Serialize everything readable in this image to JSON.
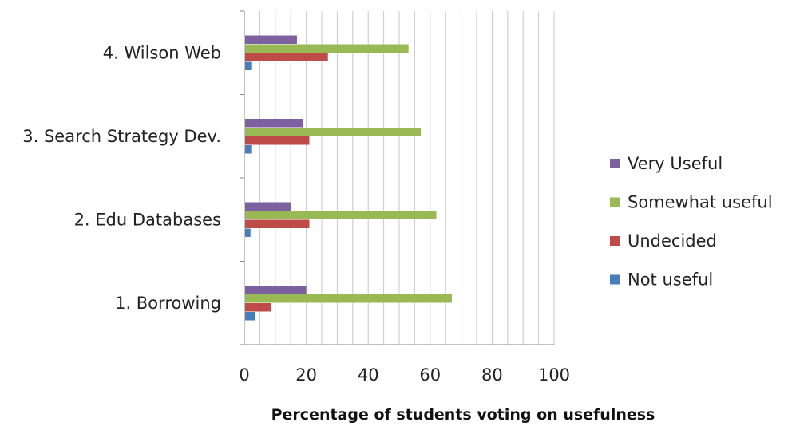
{
  "chart_data": {
    "type": "bar",
    "orientation": "horizontal",
    "categories": [
      "1. Borrowing",
      "2. Edu Databases",
      "3. Search Strategy Dev.",
      "4. Wilson Web"
    ],
    "series": [
      {
        "name": "Not useful",
        "color": "#4A7EBB",
        "values": [
          3.5,
          2,
          2.5,
          2.5
        ]
      },
      {
        "name": "Undecided",
        "color": "#BE4B48",
        "values": [
          8.5,
          21,
          21,
          27
        ]
      },
      {
        "name": "Somewhat useful",
        "color": "#98B954",
        "values": [
          67,
          62,
          57,
          53
        ]
      },
      {
        "name": "Very Useful",
        "color": "#7D60A0",
        "values": [
          20,
          15,
          19,
          17
        ]
      }
    ],
    "xlim": [
      0,
      100
    ],
    "xticks": [
      "0",
      "20",
      "40",
      "60",
      "80",
      "100"
    ],
    "xlabel": "Percentage of students voting on usefulness",
    "grid": "vertical gridlines",
    "legend": "right"
  }
}
